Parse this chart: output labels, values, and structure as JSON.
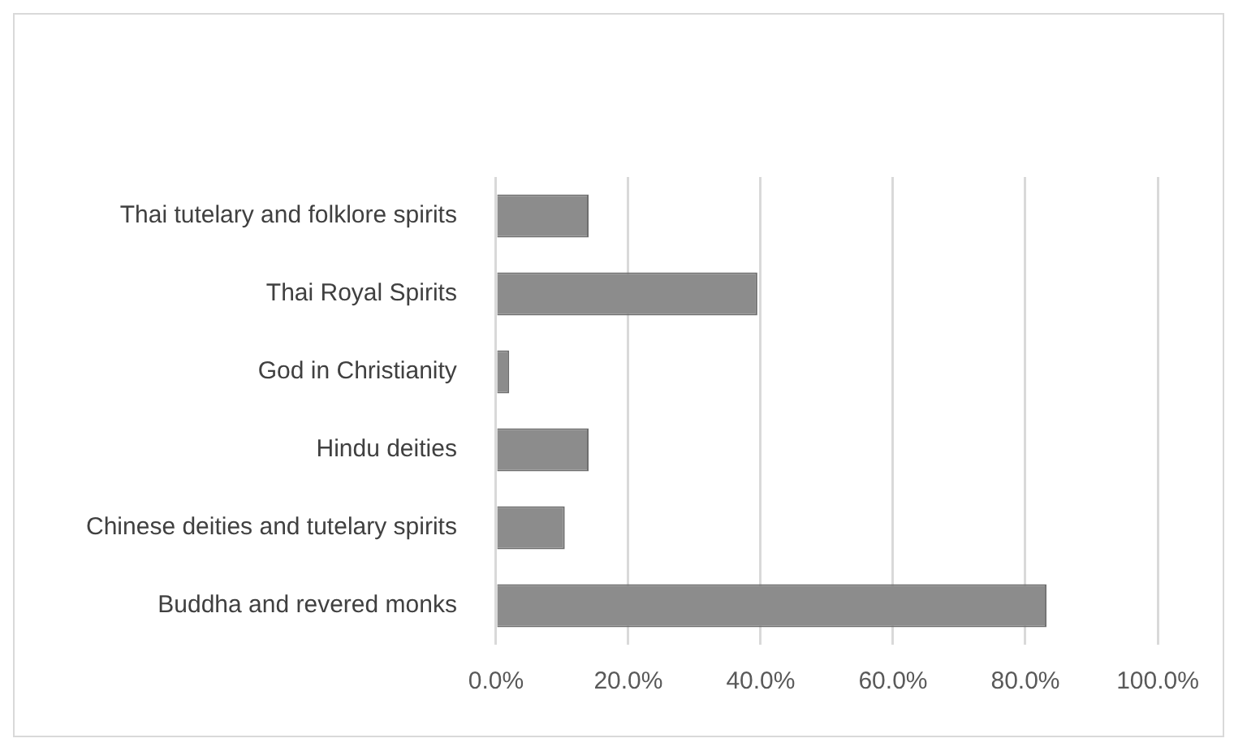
{
  "chart_data": {
    "type": "bar",
    "orientation": "horizontal",
    "categories": [
      "Thai tutelary and folklore spirits",
      "Thai Royal Spirits",
      "God in Christianity",
      "Hindu deities",
      "Chinese deities and tutelary spirits",
      "Buddha and revered monks"
    ],
    "values": [
      14.0,
      39.5,
      2.0,
      14.0,
      10.4,
      83.2
    ],
    "color": "#8c8c8c",
    "xlim": [
      0,
      100
    ],
    "xticks": [
      {
        "value": 0,
        "label": "0.0%"
      },
      {
        "value": 20,
        "label": "20.0%"
      },
      {
        "value": 40,
        "label": "40.0%"
      },
      {
        "value": 60,
        "label": "60.0%"
      },
      {
        "value": 80,
        "label": "80.0%"
      },
      {
        "value": 100,
        "label": "100.0%"
      }
    ],
    "grid": "x"
  }
}
